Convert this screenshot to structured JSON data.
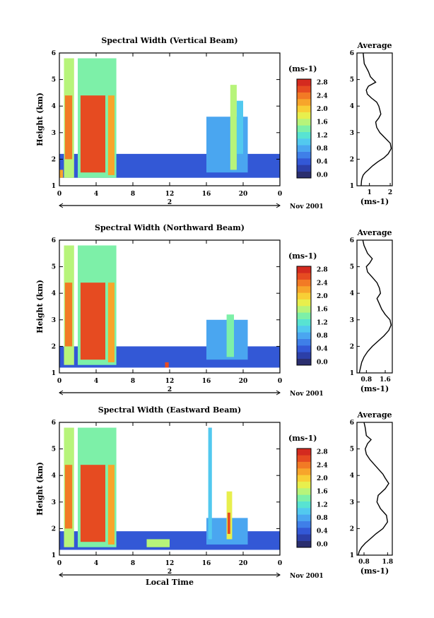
{
  "figure": {
    "xlabel": "Local Time",
    "date_suffix": "Nov 2001",
    "day_label": "2",
    "colormap": [
      "#2a2e6e",
      "#2c3fa8",
      "#3358d6",
      "#3f7fe8",
      "#4aa6f0",
      "#52c9ef",
      "#58e3d2",
      "#7df0a8",
      "#b7f47a",
      "#e8ef4d",
      "#f8cf36",
      "#f7a52b",
      "#f27a25",
      "#e64b21",
      "#d42a1f"
    ]
  },
  "chart_data": [
    {
      "type": "heatmap",
      "title": "Spectral Width (Vertical Beam)",
      "xlabel": "",
      "ylabel": "Height (km)",
      "x_ticks": [
        "0",
        "4",
        "8",
        "12",
        "16",
        "20",
        "0"
      ],
      "xlim": [
        0,
        24
      ],
      "y_ticks": [
        "1",
        "2",
        "3",
        "4",
        "5",
        "6"
      ],
      "ylim": [
        1,
        6
      ],
      "colorbar": {
        "unit": "(ms-1)",
        "ticks": [
          "0.0",
          "0.4",
          "0.8",
          "1.2",
          "1.6",
          "2.0",
          "2.4",
          "2.8"
        ],
        "range": [
          0,
          3.0
        ]
      },
      "regions": [
        {
          "x": [
            0,
            24
          ],
          "y": [
            1.3,
            2.2
          ],
          "v": 0.5
        },
        {
          "x": [
            0.5,
            1.6
          ],
          "y": [
            1.3,
            5.8
          ],
          "v": 1.6
        },
        {
          "x": [
            0.6,
            1.4
          ],
          "y": [
            2.0,
            4.4
          ],
          "v": 2.5
        },
        {
          "x": [
            2.0,
            6.2
          ],
          "y": [
            1.3,
            5.8
          ],
          "v": 1.5
        },
        {
          "x": [
            2.3,
            5.0
          ],
          "y": [
            1.5,
            4.4
          ],
          "v": 2.7
        },
        {
          "x": [
            5.3,
            6.0
          ],
          "y": [
            1.4,
            4.4
          ],
          "v": 2.3
        },
        {
          "x": [
            0,
            0.4
          ],
          "y": [
            1.3,
            1.6
          ],
          "v": 2.4
        },
        {
          "x": [
            16.0,
            20.5
          ],
          "y": [
            1.5,
            3.6
          ],
          "v": 0.9
        },
        {
          "x": [
            18.6,
            19.3
          ],
          "y": [
            1.6,
            4.8
          ],
          "v": 1.6
        },
        {
          "x": [
            19.3,
            20.0
          ],
          "y": [
            2.2,
            4.2
          ],
          "v": 1.0
        }
      ],
      "profile": {
        "title": "Average",
        "xlabel": "(ms-1)",
        "x_ticks": [
          "1",
          "2"
        ],
        "xlim": [
          0.4,
          2.1
        ],
        "y_ticks": [
          "1",
          "2",
          "3",
          "4",
          "5",
          "6"
        ],
        "ylim": [
          1,
          6
        ],
        "x": [
          0.6,
          0.62,
          0.65,
          0.7,
          0.8,
          0.95,
          1.15,
          1.4,
          1.7,
          1.9,
          2.05,
          2.0,
          1.75,
          1.5,
          1.35,
          1.3,
          1.45,
          1.55,
          1.5,
          1.45,
          1.35,
          1.1,
          0.9,
          0.85,
          0.95,
          1.3,
          1.05,
          0.95,
          0.75,
          0.7
        ],
        "y": [
          1.0,
          1.2,
          1.3,
          1.4,
          1.5,
          1.6,
          1.75,
          1.9,
          2.05,
          2.2,
          2.4,
          2.6,
          2.8,
          3.0,
          3.2,
          3.4,
          3.55,
          3.7,
          3.85,
          4.0,
          4.15,
          4.3,
          4.45,
          4.6,
          4.75,
          4.9,
          5.1,
          5.3,
          5.6,
          6.0
        ]
      }
    },
    {
      "type": "heatmap",
      "title": "Spectral Width (Northward Beam)",
      "xlabel": "",
      "ylabel": "Height (km)",
      "x_ticks": [
        "0",
        "4",
        "8",
        "12",
        "16",
        "20",
        "0"
      ],
      "xlim": [
        0,
        24
      ],
      "y_ticks": [
        "1",
        "2",
        "3",
        "4",
        "5",
        "6"
      ],
      "ylim": [
        1,
        6
      ],
      "colorbar": {
        "unit": "(ms-1)",
        "ticks": [
          "0.0",
          "0.4",
          "0.8",
          "1.2",
          "1.6",
          "2.0",
          "2.4",
          "2.8"
        ],
        "range": [
          0,
          3.0
        ]
      },
      "regions": [
        {
          "x": [
            0,
            24
          ],
          "y": [
            1.2,
            2.0
          ],
          "v": 0.5
        },
        {
          "x": [
            0.5,
            1.6
          ],
          "y": [
            1.3,
            5.8
          ],
          "v": 1.6
        },
        {
          "x": [
            0.6,
            1.4
          ],
          "y": [
            2.0,
            4.4
          ],
          "v": 2.5
        },
        {
          "x": [
            2.0,
            6.2
          ],
          "y": [
            1.3,
            5.8
          ],
          "v": 1.5
        },
        {
          "x": [
            2.3,
            5.0
          ],
          "y": [
            1.5,
            4.4
          ],
          "v": 2.7
        },
        {
          "x": [
            5.3,
            6.0
          ],
          "y": [
            1.4,
            4.4
          ],
          "v": 2.3
        },
        {
          "x": [
            11.5,
            11.9
          ],
          "y": [
            1.2,
            1.4
          ],
          "v": 2.6
        },
        {
          "x": [
            16.0,
            20.5
          ],
          "y": [
            1.5,
            3.0
          ],
          "v": 0.9
        },
        {
          "x": [
            18.2,
            19.0
          ],
          "y": [
            1.6,
            3.2
          ],
          "v": 1.5
        }
      ],
      "profile": {
        "title": "Average",
        "xlabel": "(ms-1)",
        "x_ticks": [
          "0.8",
          "1.6"
        ],
        "xlim": [
          0.4,
          1.9
        ],
        "y_ticks": [
          "1",
          "2",
          "3",
          "4",
          "5",
          "6"
        ],
        "ylim": [
          1,
          6
        ],
        "x": [
          0.5,
          0.55,
          0.6,
          0.7,
          0.85,
          1.05,
          1.3,
          1.55,
          1.75,
          1.85,
          1.8,
          1.6,
          1.45,
          1.35,
          1.25,
          1.4,
          1.35,
          1.25,
          1.05,
          0.85,
          0.8,
          0.95,
          1.05,
          0.85,
          0.7,
          0.65
        ],
        "y": [
          1.0,
          1.2,
          1.4,
          1.6,
          1.8,
          2.0,
          2.2,
          2.4,
          2.6,
          2.8,
          3.0,
          3.2,
          3.4,
          3.6,
          3.8,
          4.0,
          4.2,
          4.4,
          4.6,
          4.8,
          5.0,
          5.15,
          5.3,
          5.5,
          5.8,
          6.0
        ]
      }
    },
    {
      "type": "heatmap",
      "title": "Spectral Width (Eastward Beam)",
      "xlabel": "Local Time",
      "ylabel": "Height (km)",
      "x_ticks": [
        "0",
        "4",
        "8",
        "12",
        "16",
        "20",
        "0"
      ],
      "xlim": [
        0,
        24
      ],
      "y_ticks": [
        "1",
        "2",
        "3",
        "4",
        "5",
        "6"
      ],
      "ylim": [
        1,
        6
      ],
      "colorbar": {
        "unit": "(ms-1)",
        "ticks": [
          "0.0",
          "0.4",
          "0.8",
          "1.2",
          "1.6",
          "2.0",
          "2.4",
          "2.8"
        ],
        "range": [
          0,
          3.0
        ]
      },
      "regions": [
        {
          "x": [
            0,
            24
          ],
          "y": [
            1.2,
            1.9
          ],
          "v": 0.5
        },
        {
          "x": [
            0.5,
            1.6
          ],
          "y": [
            1.3,
            5.8
          ],
          "v": 1.6
        },
        {
          "x": [
            0.6,
            1.4
          ],
          "y": [
            2.0,
            4.4
          ],
          "v": 2.5
        },
        {
          "x": [
            2.0,
            6.2
          ],
          "y": [
            1.3,
            5.8
          ],
          "v": 1.5
        },
        {
          "x": [
            2.3,
            5.0
          ],
          "y": [
            1.5,
            4.4
          ],
          "v": 2.7
        },
        {
          "x": [
            5.3,
            6.0
          ],
          "y": [
            1.4,
            4.4
          ],
          "v": 2.3
        },
        {
          "x": [
            9.5,
            12.0
          ],
          "y": [
            1.3,
            1.6
          ],
          "v": 1.6
        },
        {
          "x": [
            16.0,
            20.5
          ],
          "y": [
            1.4,
            2.4
          ],
          "v": 0.9
        },
        {
          "x": [
            16.2,
            16.6
          ],
          "y": [
            1.6,
            5.8
          ],
          "v": 1.2
        },
        {
          "x": [
            18.2,
            18.8
          ],
          "y": [
            1.6,
            3.4
          ],
          "v": 1.9
        },
        {
          "x": [
            18.3,
            18.6
          ],
          "y": [
            1.8,
            2.6
          ],
          "v": 2.6
        }
      ],
      "profile": {
        "title": "Average",
        "xlabel": "(ms-1)",
        "x_ticks": [
          "0.8",
          "1.8"
        ],
        "xlim": [
          0.5,
          2.0
        ],
        "y_ticks": [
          "1",
          "2",
          "3",
          "4",
          "5",
          "6"
        ],
        "ylim": [
          1,
          6
        ],
        "x": [
          0.55,
          0.6,
          0.7,
          0.85,
          1.05,
          1.3,
          1.6,
          1.8,
          1.75,
          1.5,
          1.35,
          1.4,
          1.7,
          1.85,
          1.7,
          1.6,
          1.45,
          1.25,
          1.05,
          0.9,
          0.85,
          0.95,
          1.1,
          0.9,
          0.85,
          0.8
        ],
        "y": [
          1.0,
          1.15,
          1.3,
          1.45,
          1.6,
          1.8,
          2.0,
          2.25,
          2.5,
          2.75,
          3.0,
          3.25,
          3.5,
          3.7,
          3.9,
          4.05,
          4.2,
          4.4,
          4.6,
          4.8,
          5.0,
          5.2,
          5.35,
          5.5,
          5.8,
          6.0
        ]
      }
    }
  ]
}
